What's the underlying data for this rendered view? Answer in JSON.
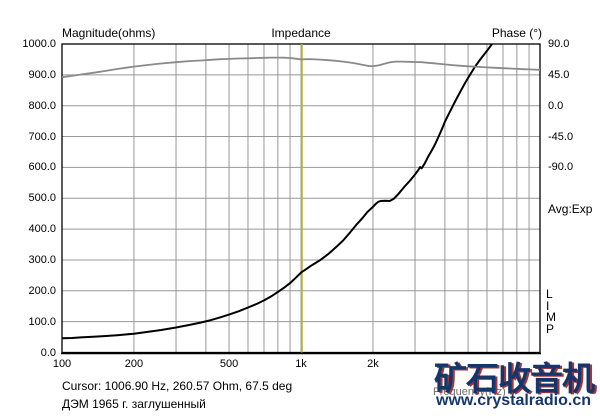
{
  "header": {
    "magnitude_label": "Magnitude(ohms)",
    "center_title": "Impedance",
    "phase_label": "Phase (°)"
  },
  "right_panel": {
    "avg_mode": "Avg:Exp",
    "app_letters": [
      "L",
      "I",
      "M",
      "P"
    ]
  },
  "status": {
    "cursor_readout": "Cursor: 1006.90 Hz, 260.57 Ohm, 67.5 deg",
    "device_note": "ДЭМ 1965 г. заглушенный"
  },
  "watermark": {
    "title": "矿石收音机",
    "url": "www.crystalradio.cn",
    "color": "#15366d",
    "edge_color": "#a83535"
  },
  "colors": {
    "grid": "#989898",
    "border": "#000000",
    "magnitude_curve": "#000000",
    "phase_curve": "#8a8a8a",
    "cursor_line": "#b1ae40",
    "background": "#ffffff"
  },
  "chart_data": {
    "type": "line",
    "title": "Impedance",
    "x_axis": {
      "label": "Frequency(Hz)",
      "scale": "log",
      "min": 100,
      "max": 10000,
      "major_ticks": [
        {
          "f": 100,
          "label": "100"
        },
        {
          "f": 200,
          "label": "200"
        },
        {
          "f": 500,
          "label": "500"
        },
        {
          "f": 1000,
          "label": "1k"
        },
        {
          "f": 2000,
          "label": "2k"
        }
      ],
      "gridline_freqs": [
        200,
        300,
        400,
        500,
        600,
        700,
        800,
        900,
        1000,
        2000,
        3000,
        4000,
        5000,
        6000,
        7000,
        8000,
        9000
      ]
    },
    "y_left": {
      "label": "Magnitude(ohms)",
      "min": 0,
      "max": 1000,
      "step": 100,
      "tick_labels": [
        "1000.0",
        "900.0",
        "800.0",
        "700.0",
        "600.0",
        "500.0",
        "400.0",
        "300.0",
        "200.0",
        "100.0",
        "0.0"
      ],
      "grid": true
    },
    "y_right": {
      "label": "Phase (°)",
      "tick_degs": [
        90,
        45,
        0,
        -45,
        -90
      ],
      "tick_labels": [
        "90.0",
        "45.0",
        "0.0",
        "-45.0",
        "-90.0"
      ],
      "deg_to_left_axis_alignment": {
        "deg": [
          -90,
          90
        ],
        "ohm": [
          600,
          1000
        ]
      }
    },
    "cursor": {
      "freq_hz": 1006.9,
      "magnitude_ohm": 260.57,
      "phase_deg": 67.5
    },
    "series": [
      {
        "name": "impedance-magnitude",
        "axis": "left",
        "points": [
          [
            100,
            46
          ],
          [
            110,
            47
          ],
          [
            120,
            49
          ],
          [
            135,
            51
          ],
          [
            150,
            53
          ],
          [
            170,
            56
          ],
          [
            200,
            61
          ],
          [
            230,
            67
          ],
          [
            260,
            73
          ],
          [
            300,
            81
          ],
          [
            340,
            89
          ],
          [
            380,
            97
          ],
          [
            420,
            105
          ],
          [
            460,
            114
          ],
          [
            500,
            123
          ],
          [
            550,
            134
          ],
          [
            600,
            146
          ],
          [
            650,
            157
          ],
          [
            700,
            169
          ],
          [
            750,
            182
          ],
          [
            800,
            196
          ],
          [
            850,
            210
          ],
          [
            900,
            225
          ],
          [
            950,
            242
          ],
          [
            1000,
            259
          ],
          [
            1050,
            270
          ],
          [
            1100,
            281
          ],
          [
            1150,
            290
          ],
          [
            1200,
            299
          ],
          [
            1300,
            319
          ],
          [
            1400,
            341
          ],
          [
            1500,
            363
          ],
          [
            1600,
            388
          ],
          [
            1700,
            413
          ],
          [
            1800,
            434
          ],
          [
            1900,
            456
          ],
          [
            2000,
            472
          ],
          [
            2050,
            481
          ],
          [
            2100,
            488
          ],
          [
            2150,
            491
          ],
          [
            2250,
            492
          ],
          [
            2350,
            491
          ],
          [
            2450,
            499
          ],
          [
            2550,
            513
          ],
          [
            2700,
            536
          ],
          [
            2850,
            556
          ],
          [
            3000,
            577
          ],
          [
            3100,
            592
          ],
          [
            3150,
            601
          ],
          [
            3200,
            597
          ],
          [
            3300,
            614
          ],
          [
            3400,
            634
          ],
          [
            3500,
            651
          ],
          [
            3600,
            668
          ],
          [
            3700,
            687
          ],
          [
            3800,
            707
          ],
          [
            3900,
            727
          ],
          [
            4000,
            748
          ],
          [
            4200,
            781
          ],
          [
            4400,
            812
          ],
          [
            4600,
            840
          ],
          [
            4800,
            866
          ],
          [
            5000,
            890
          ],
          [
            5300,
            922
          ],
          [
            5600,
            948
          ],
          [
            6000,
            978
          ],
          [
            6300,
            1000
          ],
          [
            6600,
            1022
          ]
        ]
      },
      {
        "name": "impedance-phase",
        "axis": "right",
        "points": [
          [
            100,
            41.5
          ],
          [
            110,
            43.5
          ],
          [
            120,
            45.5
          ],
          [
            135,
            48
          ],
          [
            150,
            50.5
          ],
          [
            170,
            53.5
          ],
          [
            200,
            57
          ],
          [
            230,
            59.5
          ],
          [
            260,
            61.5
          ],
          [
            300,
            63.5
          ],
          [
            340,
            65
          ],
          [
            380,
            66
          ],
          [
            420,
            67
          ],
          [
            460,
            67.8
          ],
          [
            500,
            68.3
          ],
          [
            550,
            68.8
          ],
          [
            600,
            69.2
          ],
          [
            650,
            69.6
          ],
          [
            700,
            69.9
          ],
          [
            750,
            70.1
          ],
          [
            800,
            70.2
          ],
          [
            850,
            70.0
          ],
          [
            900,
            69.6
          ],
          [
            950,
            68.6
          ],
          [
            1000,
            67.6
          ],
          [
            1050,
            67.9
          ],
          [
            1100,
            68.0
          ],
          [
            1150,
            67.6
          ],
          [
            1200,
            67.2
          ],
          [
            1300,
            66.4
          ],
          [
            1400,
            65.5
          ],
          [
            1500,
            64.4
          ],
          [
            1600,
            63.0
          ],
          [
            1700,
            61.5
          ],
          [
            1800,
            59.8
          ],
          [
            1900,
            58.2
          ],
          [
            1950,
            57.6
          ],
          [
            2000,
            57.7
          ],
          [
            2100,
            58.6
          ],
          [
            2200,
            60.5
          ],
          [
            2300,
            62.5
          ],
          [
            2400,
            63.8
          ],
          [
            2500,
            64.4
          ],
          [
            2650,
            64.3
          ],
          [
            2800,
            64.0
          ],
          [
            3000,
            63.8
          ],
          [
            3200,
            63.4
          ],
          [
            3400,
            62.6
          ],
          [
            3600,
            61.8
          ],
          [
            3800,
            61.0
          ],
          [
            4000,
            60.2
          ],
          [
            4300,
            59.2
          ],
          [
            4600,
            58.4
          ],
          [
            5000,
            57.5
          ],
          [
            5500,
            56.6
          ],
          [
            6000,
            55.9
          ],
          [
            6500,
            55.3
          ],
          [
            7000,
            54.7
          ],
          [
            7500,
            54.2
          ],
          [
            8000,
            53.7
          ],
          [
            8500,
            53.3
          ],
          [
            9000,
            53.0
          ],
          [
            9500,
            52.7
          ],
          [
            10000,
            52.4
          ]
        ]
      }
    ]
  }
}
